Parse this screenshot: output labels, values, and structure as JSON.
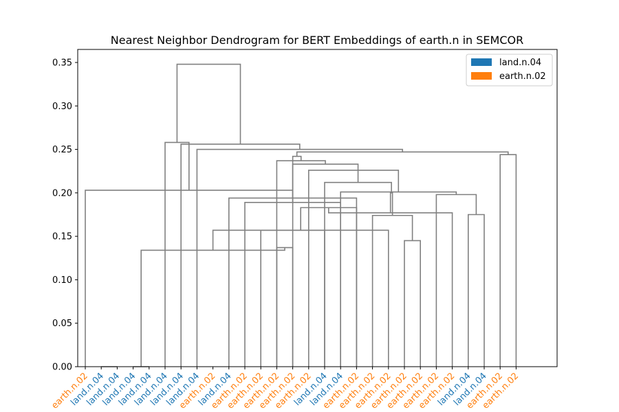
{
  "chart_data": {
    "type": "dendrogram",
    "title": "Nearest Neighbor Dendrogram for BERT Embeddings of earth.n in SEMCOR",
    "xlabel": "",
    "ylabel": "",
    "ylim": [
      0,
      0.365
    ],
    "yticks": [
      "0.00",
      "0.05",
      "0.10",
      "0.15",
      "0.20",
      "0.25",
      "0.30",
      "0.35"
    ],
    "grid": false,
    "legend_position": "top-right",
    "legend": [
      {
        "label": "land.n.04",
        "color": "#1f77b4"
      },
      {
        "label": "earth.n.02",
        "color": "#ff7f0e"
      }
    ],
    "leaves": [
      "earth.n.02",
      "land.n.04",
      "land.n.04",
      "land.n.04",
      "land.n.04",
      "land.n.04",
      "land.n.04",
      "land.n.04",
      "earth.n.02",
      "land.n.04",
      "earth.n.02",
      "earth.n.02",
      "earth.n.02",
      "earth.n.02",
      "earth.n.02",
      "land.n.04",
      "land.n.04",
      "earth.n.02",
      "earth.n.02",
      "earth.n.02",
      "earth.n.02",
      "earth.n.02",
      "earth.n.02",
      "earth.n.02",
      "land.n.04",
      "land.n.04",
      "earth.n.02",
      "earth.n.02"
    ],
    "merges": [
      {
        "left": 1,
        "right": 2,
        "height": 0.0
      },
      {
        "left": 3,
        "right": 4,
        "height": 0.0
      },
      {
        "left": 12,
        "right": 13,
        "height": 0.137
      },
      {
        "left": 11,
        "right": 15,
        "height": 0.157
      },
      {
        "left": 10,
        "right": 16,
        "height": 0.189
      },
      {
        "left": 9,
        "right": 17,
        "height": 0.194
      },
      {
        "left": 29,
        "right": 30,
        "height": 0.134
      },
      {
        "left": 20,
        "right": 21,
        "height": 0.145
      },
      {
        "left": 19,
        "right": 34,
        "height": 0.157
      },
      {
        "left": 18,
        "right": 35,
        "height": 0.174
      },
      {
        "left": 17,
        "right": 36,
        "height": 0.183
      },
      {
        "left": 24,
        "right": 25,
        "height": 0.175
      },
      {
        "left": 23,
        "right": 38,
        "height": 0.177
      },
      {
        "left": 22,
        "right": 39,
        "height": 0.198
      },
      {
        "left": 37,
        "right": 40,
        "height": 0.2
      },
      {
        "left": 16,
        "right": 41,
        "height": 0.201
      },
      {
        "left": 15,
        "right": 42,
        "height": 0.212
      },
      {
        "left": 14,
        "right": 43,
        "height": 0.226
      },
      {
        "left": 13,
        "right": 44,
        "height": 0.233
      },
      {
        "left": 0,
        "right": 33,
        "height": 0.203
      },
      {
        "left": 5,
        "right": 47,
        "height": 0.258
      },
      {
        "left": 26,
        "right": 27,
        "height": 0.244
      },
      {
        "left": 12,
        "right": 46,
        "height": 0.237
      },
      {
        "left": 32,
        "right": 50,
        "height": 0.242
      },
      {
        "left": 51,
        "right": 49,
        "height": 0.247
      },
      {
        "left": 7,
        "right": 52,
        "height": 0.25
      },
      {
        "left": 6,
        "right": 53,
        "height": 0.256
      },
      {
        "left": 48,
        "right": 54,
        "height": 0.348
      }
    ]
  }
}
